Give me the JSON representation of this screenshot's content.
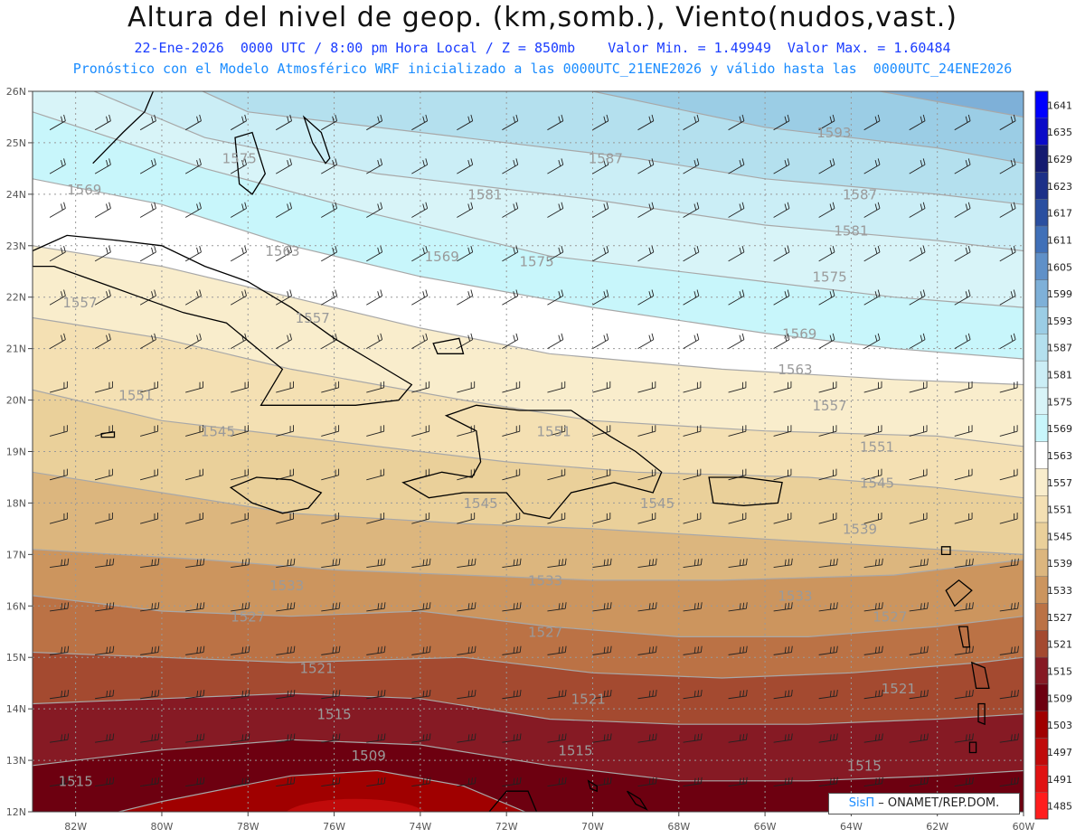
{
  "title": "Altura del nivel de geop. (km,somb.), Viento(nudos,vast.)",
  "subtitle_line1": "22-Ene-2026  0000 UTC / 8:00 pm Hora Local / Z = 850mb    Valor Min. = 1.49949  Valor Max. = 1.60484",
  "subtitle_line2": "Pronóstico con el Modelo Atmosférico WRF inicializado a las 0000UTC_21ENE2026 y válido hasta las  0000UTC_24ENE2026",
  "credit": {
    "brand": "SisΠ",
    "text": " – ONAMET/REP.DOM."
  },
  "colors": {
    "coast": "#000000",
    "contour": "#a8a8a8",
    "grid": "#999999"
  },
  "chart_data": {
    "type": "heatmap",
    "lon_range": [
      -83,
      -60
    ],
    "lat_range": [
      12,
      26
    ],
    "lon_ticks": [
      "82W",
      "80W",
      "78W",
      "76W",
      "74W",
      "72W",
      "70W",
      "68W",
      "66W",
      "64W",
      "62W",
      "60W"
    ],
    "lat_ticks": [
      "12N",
      "13N",
      "14N",
      "15N",
      "16N",
      "17N",
      "18N",
      "19N",
      "20N",
      "21N",
      "22N",
      "23N",
      "24N",
      "25N",
      "26N"
    ],
    "colorbar": {
      "levels": [
        1485,
        1491,
        1497,
        1503,
        1509,
        1515,
        1521,
        1527,
        1533,
        1539,
        1545,
        1551,
        1557,
        1563,
        1569,
        1575,
        1581,
        1587,
        1593,
        1599,
        1605,
        1611,
        1617,
        1623,
        1629,
        1635,
        1641
      ],
      "colors": [
        "#ff1d1d",
        "#e01212",
        "#c00a0a",
        "#a00000",
        "#6d0010",
        "#861a24",
        "#a44a30",
        "#bb7245",
        "#cc955e",
        "#dcb67e",
        "#ead09a",
        "#f4e0b3",
        "#f9edcc",
        "#ffffff",
        "#c8f6fb",
        "#d8f4f8",
        "#cbeef6",
        "#b4e0ee",
        "#9bcde5",
        "#7eb0d8",
        "#5f90c8",
        "#4070b8",
        "#2a4fa0",
        "#1c3088",
        "#141a70",
        "#0a0ac8",
        "#0000ff"
      ]
    },
    "contour_labels": [
      {
        "text": "1569",
        "lon": -82.2,
        "lat": 24.0
      },
      {
        "text": "1575",
        "lon": -78.6,
        "lat": 24.6
      },
      {
        "text": "1581",
        "lon": -72.9,
        "lat": 23.9
      },
      {
        "text": "1587",
        "lon": -70.1,
        "lat": 24.6
      },
      {
        "text": "1593",
        "lon": -64.8,
        "lat": 25.1
      },
      {
        "text": "1587",
        "lon": -64.2,
        "lat": 23.9
      },
      {
        "text": "1581",
        "lon": -64.4,
        "lat": 23.2
      },
      {
        "text": "1575",
        "lon": -71.7,
        "lat": 22.6
      },
      {
        "text": "1575",
        "lon": -64.9,
        "lat": 22.3
      },
      {
        "text": "1569",
        "lon": -73.9,
        "lat": 22.7
      },
      {
        "text": "1569",
        "lon": -65.6,
        "lat": 21.2
      },
      {
        "text": "1563",
        "lon": -77.6,
        "lat": 22.8
      },
      {
        "text": "1563",
        "lon": -65.7,
        "lat": 20.5
      },
      {
        "text": "1557",
        "lon": -82.3,
        "lat": 21.8
      },
      {
        "text": "1557",
        "lon": -76.9,
        "lat": 21.5
      },
      {
        "text": "1557",
        "lon": -64.9,
        "lat": 19.8
      },
      {
        "text": "1551",
        "lon": -81.0,
        "lat": 20.0
      },
      {
        "text": "1551",
        "lon": -71.3,
        "lat": 19.3
      },
      {
        "text": "1551",
        "lon": -63.8,
        "lat": 19.0
      },
      {
        "text": "1545",
        "lon": -79.1,
        "lat": 19.3
      },
      {
        "text": "1545",
        "lon": -73.0,
        "lat": 17.9
      },
      {
        "text": "1545",
        "lon": -68.9,
        "lat": 17.9
      },
      {
        "text": "1545",
        "lon": -63.8,
        "lat": 18.3
      },
      {
        "text": "1539",
        "lon": -64.2,
        "lat": 17.4
      },
      {
        "text": "1533",
        "lon": -77.5,
        "lat": 16.3
      },
      {
        "text": "1533",
        "lon": -71.5,
        "lat": 16.4
      },
      {
        "text": "1533",
        "lon": -65.7,
        "lat": 16.1
      },
      {
        "text": "1527",
        "lon": -78.4,
        "lat": 15.7
      },
      {
        "text": "1527",
        "lon": -71.5,
        "lat": 15.4
      },
      {
        "text": "1527",
        "lon": -63.5,
        "lat": 15.7
      },
      {
        "text": "1521",
        "lon": -76.8,
        "lat": 14.7
      },
      {
        "text": "1521",
        "lon": -70.5,
        "lat": 14.1
      },
      {
        "text": "1521",
        "lon": -63.3,
        "lat": 14.3
      },
      {
        "text": "1515",
        "lon": -76.4,
        "lat": 13.8
      },
      {
        "text": "1515",
        "lon": -70.8,
        "lat": 13.1
      },
      {
        "text": "1515",
        "lon": -64.1,
        "lat": 12.8
      },
      {
        "text": "1515",
        "lon": -82.4,
        "lat": 12.5
      },
      {
        "text": "1509",
        "lon": -75.6,
        "lat": 13.0
      }
    ]
  }
}
